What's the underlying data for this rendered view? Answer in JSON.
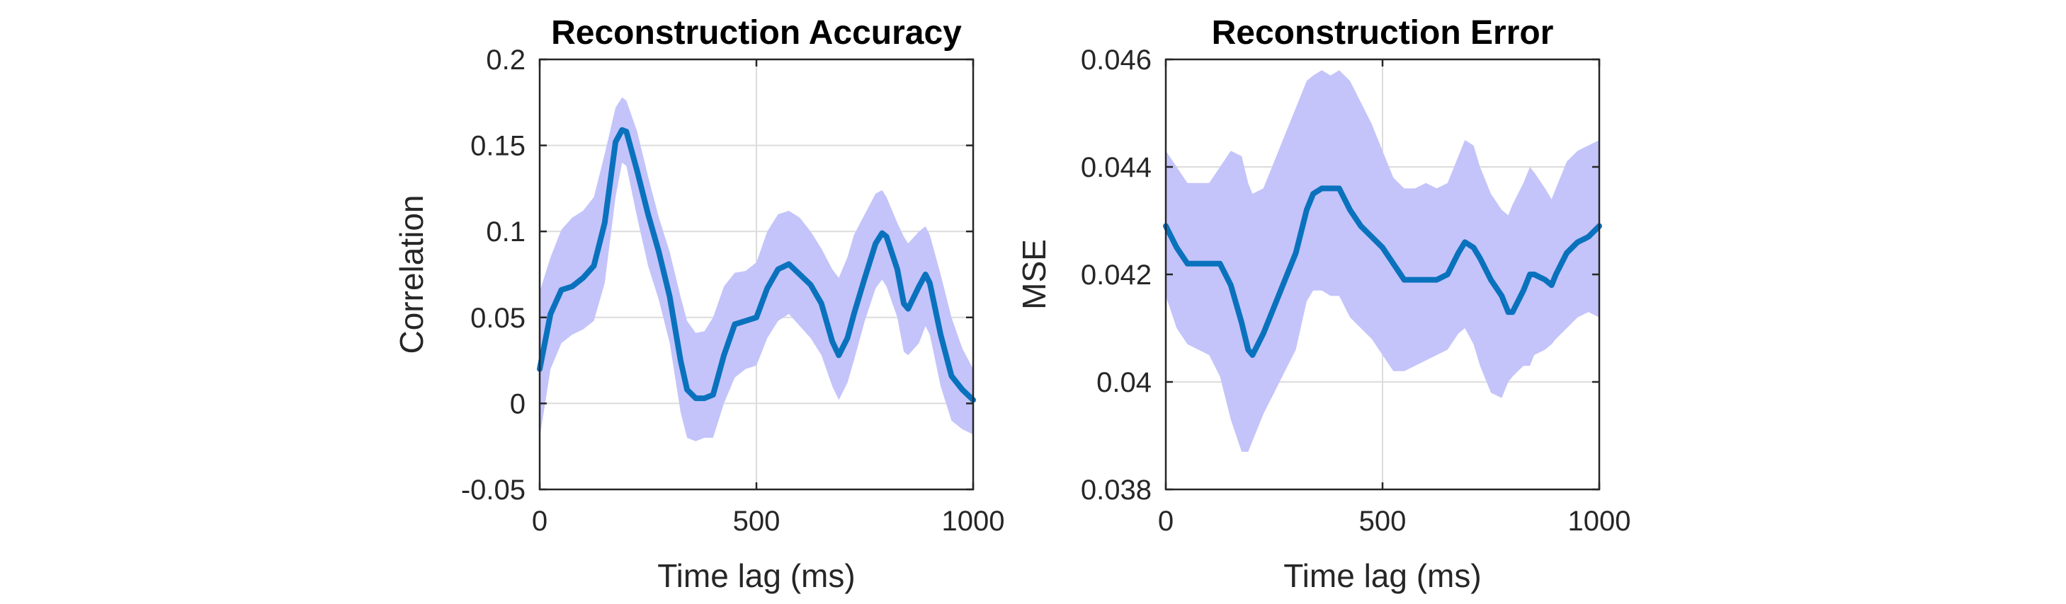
{
  "chart_data": [
    {
      "type": "line",
      "title": "Reconstruction Accuracy",
      "xlabel": "Time lag (ms)",
      "ylabel": "Correlation",
      "xlim": [
        0,
        1000
      ],
      "ylim": [
        -0.05,
        0.2
      ],
      "xticks": [
        0,
        500,
        1000
      ],
      "xtick_labels": [
        "0",
        "500",
        "1000"
      ],
      "yticks": [
        -0.05,
        0,
        0.05,
        0.1,
        0.15,
        0.2
      ],
      "ytick_labels": [
        "-0.05",
        "0",
        "0.05",
        "0.1",
        "0.15",
        "0.2"
      ],
      "grid": true,
      "colors": {
        "line": "#0a72bd",
        "band": "#c4c4fb"
      },
      "x": [
        0,
        25,
        50,
        75,
        100,
        125,
        150,
        175,
        190,
        200,
        225,
        250,
        275,
        300,
        325,
        340,
        360,
        380,
        400,
        425,
        450,
        475,
        500,
        525,
        550,
        575,
        600,
        625,
        650,
        675,
        690,
        710,
        725,
        750,
        775,
        790,
        800,
        825,
        840,
        850,
        875,
        890,
        900,
        925,
        950,
        975,
        1000
      ],
      "series": [
        {
          "values": [
            0.02,
            0.052,
            0.066,
            0.068,
            0.073,
            0.08,
            0.105,
            0.152,
            0.159,
            0.158,
            0.135,
            0.11,
            0.088,
            0.062,
            0.025,
            0.008,
            0.003,
            0.003,
            0.005,
            0.028,
            0.046,
            0.048,
            0.05,
            0.067,
            0.078,
            0.081,
            0.075,
            0.069,
            0.058,
            0.036,
            0.028,
            0.038,
            0.052,
            0.073,
            0.093,
            0.099,
            0.097,
            0.078,
            0.058,
            0.055,
            0.068,
            0.075,
            0.07,
            0.04,
            0.016,
            0.008,
            0.002
          ]
        }
      ],
      "band_upper": [
        0.065,
        0.085,
        0.101,
        0.108,
        0.112,
        0.12,
        0.145,
        0.172,
        0.178,
        0.176,
        0.158,
        0.132,
        0.108,
        0.088,
        0.062,
        0.048,
        0.041,
        0.042,
        0.05,
        0.068,
        0.076,
        0.077,
        0.082,
        0.1,
        0.11,
        0.112,
        0.108,
        0.1,
        0.09,
        0.078,
        0.073,
        0.085,
        0.098,
        0.11,
        0.122,
        0.124,
        0.12,
        0.105,
        0.097,
        0.093,
        0.1,
        0.103,
        0.098,
        0.075,
        0.05,
        0.032,
        0.02
      ],
      "band_lower": [
        -0.02,
        0.02,
        0.035,
        0.04,
        0.043,
        0.048,
        0.07,
        0.12,
        0.14,
        0.138,
        0.108,
        0.08,
        0.06,
        0.035,
        -0.005,
        -0.02,
        -0.022,
        -0.02,
        -0.02,
        0.0,
        0.015,
        0.02,
        0.022,
        0.038,
        0.048,
        0.052,
        0.045,
        0.038,
        0.028,
        0.01,
        0.002,
        0.012,
        0.025,
        0.048,
        0.067,
        0.072,
        0.068,
        0.05,
        0.03,
        0.028,
        0.035,
        0.045,
        0.04,
        0.01,
        -0.01,
        -0.015,
        -0.018
      ]
    },
    {
      "type": "line",
      "title": "Reconstruction Error",
      "xlabel": "Time lag (ms)",
      "ylabel": "MSE",
      "xlim": [
        0,
        1000
      ],
      "ylim": [
        0.038,
        0.046
      ],
      "xticks": [
        0,
        500,
        1000
      ],
      "xtick_labels": [
        "0",
        "500",
        "1000"
      ],
      "yticks": [
        0.038,
        0.04,
        0.042,
        0.044,
        0.046
      ],
      "ytick_labels": [
        "0.038",
        "0.04",
        "0.042",
        "0.044",
        "0.046"
      ],
      "grid": true,
      "colors": {
        "line": "#0a72bd",
        "band": "#c4c4fb"
      },
      "x": [
        0,
        25,
        50,
        75,
        100,
        125,
        150,
        175,
        190,
        200,
        225,
        250,
        275,
        300,
        325,
        340,
        360,
        380,
        400,
        425,
        450,
        475,
        500,
        525,
        550,
        575,
        600,
        625,
        650,
        675,
        690,
        710,
        725,
        750,
        775,
        790,
        800,
        825,
        840,
        850,
        875,
        890,
        900,
        925,
        950,
        975,
        1000
      ],
      "series": [
        {
          "values": [
            0.0429,
            0.0425,
            0.0422,
            0.0422,
            0.0422,
            0.0422,
            0.0418,
            0.0411,
            0.0406,
            0.0405,
            0.0409,
            0.0414,
            0.0419,
            0.0424,
            0.0432,
            0.0435,
            0.0436,
            0.0436,
            0.0436,
            0.0432,
            0.0429,
            0.0427,
            0.0425,
            0.0422,
            0.0419,
            0.0419,
            0.0419,
            0.0419,
            0.042,
            0.0424,
            0.0426,
            0.0425,
            0.0423,
            0.0419,
            0.0416,
            0.0413,
            0.0413,
            0.0417,
            0.042,
            0.042,
            0.0419,
            0.0418,
            0.042,
            0.0424,
            0.0426,
            0.0427,
            0.0429
          ]
        }
      ],
      "band_upper": [
        0.0443,
        0.044,
        0.0437,
        0.0437,
        0.0437,
        0.044,
        0.0443,
        0.0442,
        0.0437,
        0.0435,
        0.0436,
        0.0441,
        0.0446,
        0.0451,
        0.0456,
        0.0457,
        0.0458,
        0.0457,
        0.0458,
        0.0456,
        0.0452,
        0.0448,
        0.0443,
        0.0438,
        0.0436,
        0.0436,
        0.0437,
        0.0436,
        0.0437,
        0.0442,
        0.0445,
        0.0444,
        0.044,
        0.0435,
        0.0432,
        0.0431,
        0.0433,
        0.0437,
        0.044,
        0.0439,
        0.0436,
        0.0434,
        0.0436,
        0.0441,
        0.0443,
        0.0444,
        0.0445
      ],
      "band_lower": [
        0.0416,
        0.041,
        0.0407,
        0.0406,
        0.0405,
        0.0401,
        0.0393,
        0.0387,
        0.0387,
        0.0389,
        0.0394,
        0.0398,
        0.0402,
        0.0406,
        0.0415,
        0.0417,
        0.0417,
        0.0416,
        0.0416,
        0.0412,
        0.041,
        0.0408,
        0.0405,
        0.0402,
        0.0402,
        0.0403,
        0.0404,
        0.0405,
        0.0406,
        0.0409,
        0.041,
        0.0407,
        0.0403,
        0.0398,
        0.0397,
        0.04,
        0.0401,
        0.0403,
        0.0403,
        0.0405,
        0.0406,
        0.0407,
        0.0408,
        0.041,
        0.0412,
        0.0413,
        0.0412
      ]
    }
  ]
}
